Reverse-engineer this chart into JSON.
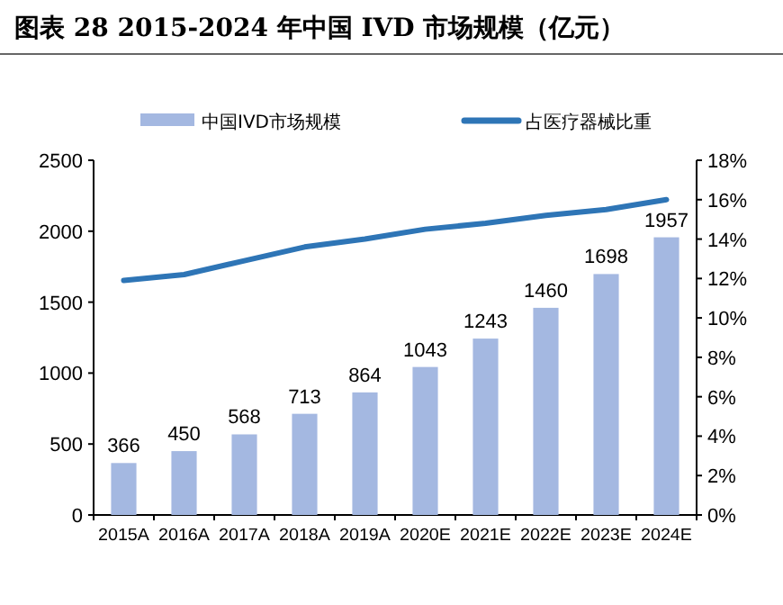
{
  "chart_data": {
    "type": "bar",
    "title": "图表 28 2015-2024 年中国 IVD 市场规模（亿元）",
    "categories": [
      "2015A",
      "2016A",
      "2017A",
      "2018A",
      "2019A",
      "2020E",
      "2021E",
      "2022E",
      "2023E",
      "2024E"
    ],
    "series": [
      {
        "name": "中国IVD市场规模",
        "color": "#a4b8e1",
        "values": [
          366,
          450,
          568,
          713,
          864,
          1043,
          1243,
          1460,
          1698,
          1957
        ],
        "value_labels": [
          "366",
          "450",
          "568",
          "713",
          "864",
          "1043",
          "1243",
          "1460",
          "1698",
          "1957"
        ]
      },
      {
        "name": "占医疗器械比重",
        "type": "line",
        "axis": "y2",
        "color": "#2e75b6",
        "values": [
          11.9,
          12.2,
          12.9,
          13.6,
          14.0,
          14.5,
          14.8,
          15.2,
          15.5,
          16.0
        ]
      }
    ],
    "ylim": [
      0,
      2500
    ],
    "yticks": [
      0,
      500,
      1000,
      1500,
      2000,
      2500
    ],
    "y2lim": [
      0,
      18
    ],
    "y2ticks": [
      {
        "value": 0,
        "label": "0%"
      },
      {
        "value": 2,
        "label": "2%"
      },
      {
        "value": 4,
        "label": "4%"
      },
      {
        "value": 6,
        "label": "6%"
      },
      {
        "value": 8,
        "label": "8%"
      },
      {
        "value": 10,
        "label": "10%"
      },
      {
        "value": 12,
        "label": "12%"
      },
      {
        "value": 14,
        "label": "14%"
      },
      {
        "value": 16,
        "label": "16%"
      },
      {
        "value": 18,
        "label": "18%"
      }
    ],
    "legend": "top",
    "marker": "none",
    "line_style": "solid"
  }
}
